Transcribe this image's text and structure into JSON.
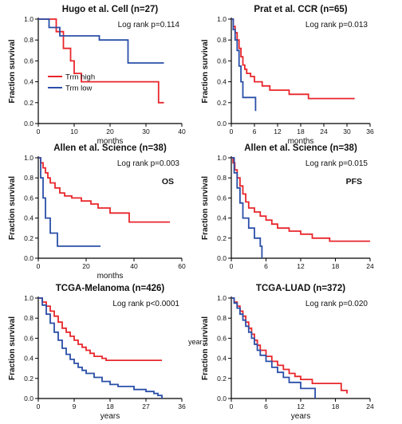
{
  "chart_data": [
    {
      "type": "line",
      "title": "Hugo et al. Cell (n=27)",
      "annotation": "Log rank p=0.114",
      "xlabel": "months",
      "ylabel": "Fraction survival",
      "xlim": [
        0,
        40
      ],
      "ylim": [
        0,
        1.0
      ],
      "xticks": [
        "0",
        "10",
        "20",
        "30",
        "40"
      ],
      "yticks": [
        "0.0",
        "0.2",
        "0.4",
        "0.6",
        "0.8",
        "1.0"
      ],
      "legend": {
        "placement": "bottom-left",
        "entries": [
          "Trm high",
          "Trm low"
        ]
      },
      "series": [
        {
          "name": "Trm high",
          "color": "#e8262b",
          "x": [
            0,
            5,
            7,
            9,
            10,
            12,
            33,
            33.5,
            35
          ],
          "y": [
            1.0,
            0.88,
            0.72,
            0.6,
            0.48,
            0.4,
            0.4,
            0.2,
            0.2
          ]
        },
        {
          "name": "Trm low",
          "color": "#2a4fa8",
          "x": [
            0,
            3,
            6,
            17,
            25,
            35
          ],
          "y": [
            1.0,
            0.92,
            0.84,
            0.8,
            0.58,
            0.58
          ]
        }
      ]
    },
    {
      "type": "line",
      "title": "Prat et al. CCR (n=65)",
      "annotation": "Log rank p=0.013",
      "xlabel": "months",
      "ylabel": "Fraction survival",
      "xlim": [
        0,
        36
      ],
      "ylim": [
        0,
        1.0
      ],
      "xticks": [
        "0",
        "6",
        "12",
        "18",
        "24",
        "30",
        "36"
      ],
      "yticks": [
        "0.0",
        "0.2",
        "0.4",
        "0.6",
        "0.8",
        "1.0"
      ],
      "series": [
        {
          "name": "Trm high",
          "color": "#e8262b",
          "x": [
            0,
            0.5,
            1,
            1.5,
            2,
            2.5,
            3,
            3.5,
            4,
            5,
            6,
            8,
            10,
            13,
            15,
            18,
            20,
            32
          ],
          "y": [
            1.0,
            0.93,
            0.87,
            0.8,
            0.72,
            0.64,
            0.56,
            0.52,
            0.48,
            0.45,
            0.4,
            0.36,
            0.32,
            0.32,
            0.28,
            0.28,
            0.24,
            0.24
          ]
        },
        {
          "name": "Trm low",
          "color": "#2a4fa8",
          "x": [
            0,
            0.5,
            1,
            1.5,
            2,
            2.5,
            3,
            4,
            6,
            6.3
          ],
          "y": [
            1.0,
            0.9,
            0.8,
            0.7,
            0.55,
            0.4,
            0.25,
            0.25,
            0.25,
            0.12
          ]
        }
      ]
    },
    {
      "type": "line",
      "title": "Allen et al. Science (n=38)",
      "annotation": "Log rank p=0.003",
      "label": "OS",
      "xlabel": "months",
      "ylabel": "Fraction survival",
      "xlim": [
        0,
        60
      ],
      "ylim": [
        0,
        1.0
      ],
      "xticks": [
        "0",
        "20",
        "40",
        "60"
      ],
      "yticks": [
        "0.0",
        "0.2",
        "0.4",
        "0.6",
        "0.8",
        "1.0"
      ],
      "series": [
        {
          "name": "Trm high",
          "color": "#e8262b",
          "x": [
            0,
            1,
            2,
            3,
            4,
            5,
            7,
            9,
            11,
            14,
            18,
            22,
            25,
            30,
            38,
            55
          ],
          "y": [
            1.0,
            0.95,
            0.9,
            0.85,
            0.8,
            0.75,
            0.7,
            0.65,
            0.62,
            0.6,
            0.57,
            0.54,
            0.5,
            0.45,
            0.36,
            0.36
          ]
        },
        {
          "name": "Trm low",
          "color": "#2a4fa8",
          "x": [
            0,
            1,
            2,
            3,
            5,
            8,
            12,
            26
          ],
          "y": [
            1.0,
            0.8,
            0.6,
            0.4,
            0.25,
            0.12,
            0.12,
            0.12
          ]
        }
      ]
    },
    {
      "type": "line",
      "title": "Allen et al. Science (n=38)",
      "annotation": "Log rank p=0.015",
      "label": "PFS",
      "xlabel": "",
      "ylabel": "Fraction survival",
      "xlim": [
        0,
        24
      ],
      "ylim": [
        0,
        1.0
      ],
      "xticks": [
        "0",
        "6",
        "12",
        "18",
        "24"
      ],
      "yticks": [
        "0.0",
        "0.2",
        "0.4",
        "0.6",
        "0.8",
        "1.0"
      ],
      "series": [
        {
          "name": "Trm high",
          "color": "#e8262b",
          "x": [
            0,
            0.3,
            0.6,
            1,
            1.5,
            2,
            2.5,
            3,
            4,
            5,
            6,
            7,
            8,
            10,
            12,
            14,
            17,
            24
          ],
          "y": [
            1.0,
            0.95,
            0.88,
            0.8,
            0.72,
            0.64,
            0.56,
            0.5,
            0.46,
            0.42,
            0.38,
            0.34,
            0.3,
            0.27,
            0.24,
            0.2,
            0.17,
            0.17
          ]
        },
        {
          "name": "Trm low",
          "color": "#2a4fa8",
          "x": [
            0,
            0.5,
            1,
            1.5,
            2,
            3,
            4,
            5,
            5.3
          ],
          "y": [
            1.0,
            0.85,
            0.7,
            0.55,
            0.4,
            0.3,
            0.2,
            0.12,
            0.0
          ]
        }
      ]
    },
    {
      "type": "line",
      "title": "TCGA-Melanoma (n=426)",
      "annotation": "Log rank p<0.0001",
      "xlabel": "years",
      "ylabel": "Fraction survival",
      "xlim": [
        0,
        36
      ],
      "ylim": [
        0,
        1.0
      ],
      "xticks": [
        "0",
        "9",
        "18",
        "27",
        "36"
      ],
      "yticks": [
        "0.0",
        "0.2",
        "0.4",
        "0.6",
        "0.8",
        "1.0"
      ],
      "series": [
        {
          "name": "Trm high",
          "color": "#e8262b",
          "x": [
            0,
            1,
            2,
            3,
            4,
            5,
            6,
            7,
            8,
            9,
            10,
            11,
            12,
            13,
            14,
            16,
            17,
            31
          ],
          "y": [
            1.0,
            0.96,
            0.92,
            0.87,
            0.82,
            0.76,
            0.7,
            0.66,
            0.62,
            0.58,
            0.54,
            0.51,
            0.48,
            0.45,
            0.42,
            0.4,
            0.38,
            0.38
          ]
        },
        {
          "name": "Trm low",
          "color": "#2a4fa8",
          "x": [
            0,
            1,
            2,
            3,
            4,
            5,
            6,
            7,
            8,
            9,
            10,
            11,
            12,
            14,
            16,
            18,
            20,
            24,
            27,
            29,
            30,
            31
          ],
          "y": [
            1.0,
            0.93,
            0.84,
            0.75,
            0.66,
            0.58,
            0.5,
            0.44,
            0.39,
            0.35,
            0.31,
            0.28,
            0.25,
            0.21,
            0.17,
            0.14,
            0.12,
            0.09,
            0.07,
            0.05,
            0.03,
            0.0
          ]
        }
      ]
    },
    {
      "type": "line",
      "title": "TCGA-LUAD (n=372)",
      "annotation": "Log rank p=0.020",
      "xlabel": "years",
      "ylabel": "Fraction survival",
      "ylabel_extra": "year",
      "xlim": [
        0,
        24
      ],
      "ylim": [
        0,
        1.0
      ],
      "xticks": [
        "0",
        "6",
        "12",
        "18",
        "24"
      ],
      "yticks": [
        "0.0",
        "0.2",
        "0.4",
        "0.6",
        "0.8",
        "1.0"
      ],
      "series": [
        {
          "name": "Trm high",
          "color": "#e8262b",
          "x": [
            0,
            0.5,
            1,
            1.5,
            2,
            2.5,
            3,
            3.5,
            4,
            4.5,
            5,
            6,
            7,
            8,
            9,
            10,
            11,
            12,
            14,
            17,
            19,
            20
          ],
          "y": [
            1.0,
            0.96,
            0.92,
            0.87,
            0.82,
            0.76,
            0.7,
            0.64,
            0.58,
            0.53,
            0.48,
            0.42,
            0.37,
            0.33,
            0.29,
            0.25,
            0.22,
            0.19,
            0.15,
            0.15,
            0.08,
            0.05
          ]
        },
        {
          "name": "Trm low",
          "color": "#2a4fa8",
          "x": [
            0,
            0.5,
            1,
            1.5,
            2,
            2.5,
            3,
            3.5,
            4,
            4.5,
            5,
            6,
            7,
            8,
            9,
            10,
            12,
            14.2,
            14.5
          ],
          "y": [
            1.0,
            0.95,
            0.9,
            0.84,
            0.78,
            0.72,
            0.66,
            0.6,
            0.54,
            0.48,
            0.43,
            0.37,
            0.31,
            0.26,
            0.21,
            0.16,
            0.1,
            0.1,
            0.0
          ]
        }
      ]
    }
  ]
}
